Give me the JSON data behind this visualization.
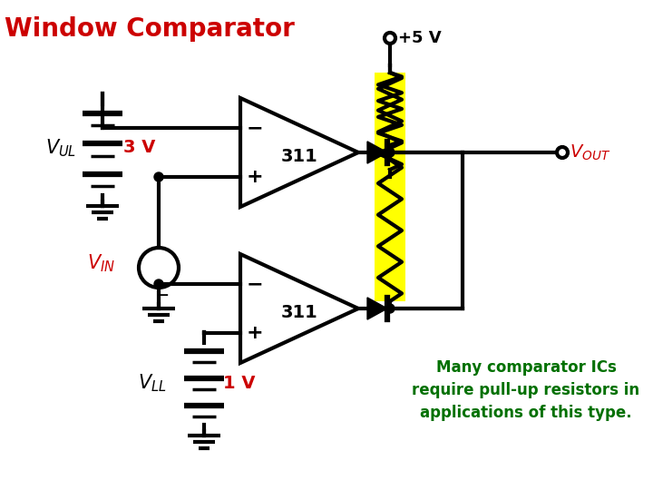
{
  "title": "Window Comparator",
  "title_color": "#CC0000",
  "title_fontsize": 20,
  "bg_color": "#FFFFFF",
  "text_color_red": "#CC0000",
  "text_color_black": "#000000",
  "text_color_green": "#007000",
  "note_text": "Many comparator ICs\nrequire pull-up resistors in\napplications of this type.",
  "vul_val": "3 V",
  "vll_val": "1 V",
  "vplus_label": "+5 V",
  "comp_label": "311"
}
